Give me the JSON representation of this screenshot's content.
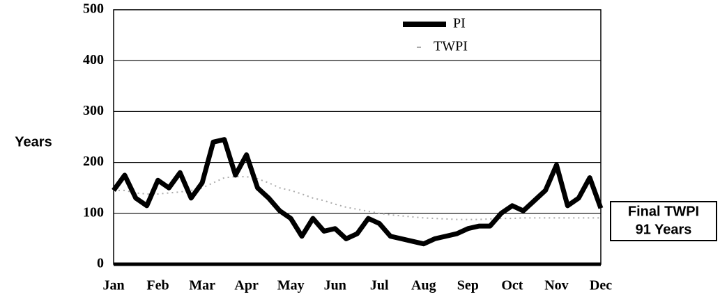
{
  "chart_data": {
    "type": "line",
    "y_label": "Years",
    "categories": [
      "Jan",
      null,
      null,
      null,
      "Feb",
      null,
      null,
      null,
      "Mar",
      null,
      null,
      null,
      "Apr",
      null,
      null,
      null,
      "May",
      null,
      null,
      null,
      "Jun",
      null,
      null,
      null,
      "Jul",
      null,
      null,
      null,
      "Aug",
      null,
      null,
      null,
      "Sep",
      null,
      null,
      null,
      "Oct",
      null,
      null,
      null,
      "Nov",
      null,
      null,
      null,
      "Dec"
    ],
    "series": [
      {
        "name": "PI",
        "color": "#000000",
        "values": [
          145,
          175,
          130,
          115,
          165,
          150,
          180,
          130,
          160,
          240,
          245,
          175,
          215,
          150,
          130,
          105,
          90,
          55,
          90,
          65,
          70,
          50,
          60,
          90,
          80,
          55,
          50,
          45,
          40,
          50,
          55,
          60,
          70,
          75,
          75,
          100,
          115,
          105,
          125,
          145,
          195,
          115,
          130,
          170,
          110
        ]
      },
      {
        "name": "TWPI",
        "color": "#aaaaaa",
        "values": [
          145,
          145,
          140,
          138,
          138,
          140,
          142,
          145,
          150,
          160,
          170,
          172,
          172,
          168,
          160,
          150,
          145,
          138,
          130,
          125,
          118,
          112,
          108,
          104,
          100,
          97,
          95,
          93,
          91,
          90,
          89,
          88,
          88,
          88,
          89,
          90,
          90,
          91,
          91,
          91,
          91,
          91,
          91,
          91,
          91
        ]
      }
    ],
    "ylim": [
      0,
      500
    ],
    "yticks": [
      0,
      100,
      200,
      300,
      400,
      500
    ],
    "grid": true,
    "annotation": [
      "Final TWPI",
      "91 Years"
    ]
  }
}
